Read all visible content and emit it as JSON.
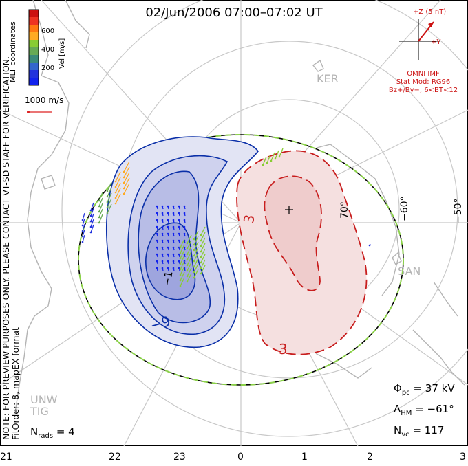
{
  "title": "02/Jun/2006  07:00–07:02  UT",
  "color_bar": {
    "label": "Vel [m/s]",
    "ticks": [
      "600",
      "400",
      "200"
    ],
    "coord_label": "MLT coordinates",
    "colors": [
      "#cc1111",
      "#ee3322",
      "#ff7711",
      "#ffaa22",
      "#88cc33",
      "#66aa55",
      "#3a8a7a",
      "#3366cc",
      "#2233dd",
      "#1122ee"
    ]
  },
  "ref_vector": {
    "label": "1000 m/s",
    "color": "#dd2222"
  },
  "imf": {
    "axis_z": "+Z (5 nT)",
    "axis_y": "+Y",
    "source": "OMNI IMF",
    "model": "Stat Mod: RG96",
    "condition": "Bz+/By−, 6<BT<12",
    "color": "#cc1111"
  },
  "latitude_labels": [
    "70°",
    "−60°",
    "−50°"
  ],
  "stations": [
    "KER",
    "SAN",
    "UNW",
    "TIG"
  ],
  "contour_labels": {
    "negative_outer": "−9",
    "negative_inner": "−1",
    "positive_outer": "3",
    "positive_inner": "3"
  },
  "stats": {
    "phi_pc_label": "Φ",
    "phi_pc_sub": "pc",
    "phi_pc_value": "= 37 kV",
    "lambda_label": "Λ",
    "lambda_sub": "HM",
    "lambda_value": "= −61°",
    "nvc_label": "N",
    "nvc_sub": "vc",
    "nvc_value": "= 117",
    "nrads_label": "N",
    "nrads_sub": "rads",
    "nrads_value": "= 4"
  },
  "note_line1": "NOTE: FOR PREVIEW PURPOSES ONLY. PLEASE CONTACT VT-SD STAFF FOR VERIFICATION.",
  "note_line2": "FitOrder: 8, mapEX format",
  "mlt_hours": [
    "21",
    "22",
    "23",
    "0",
    "1",
    "2",
    "3"
  ],
  "colors": {
    "negative_cell": "#0a2fa8",
    "positive_cell": "#c81e1e",
    "boundary_green": "#8cd24a"
  }
}
